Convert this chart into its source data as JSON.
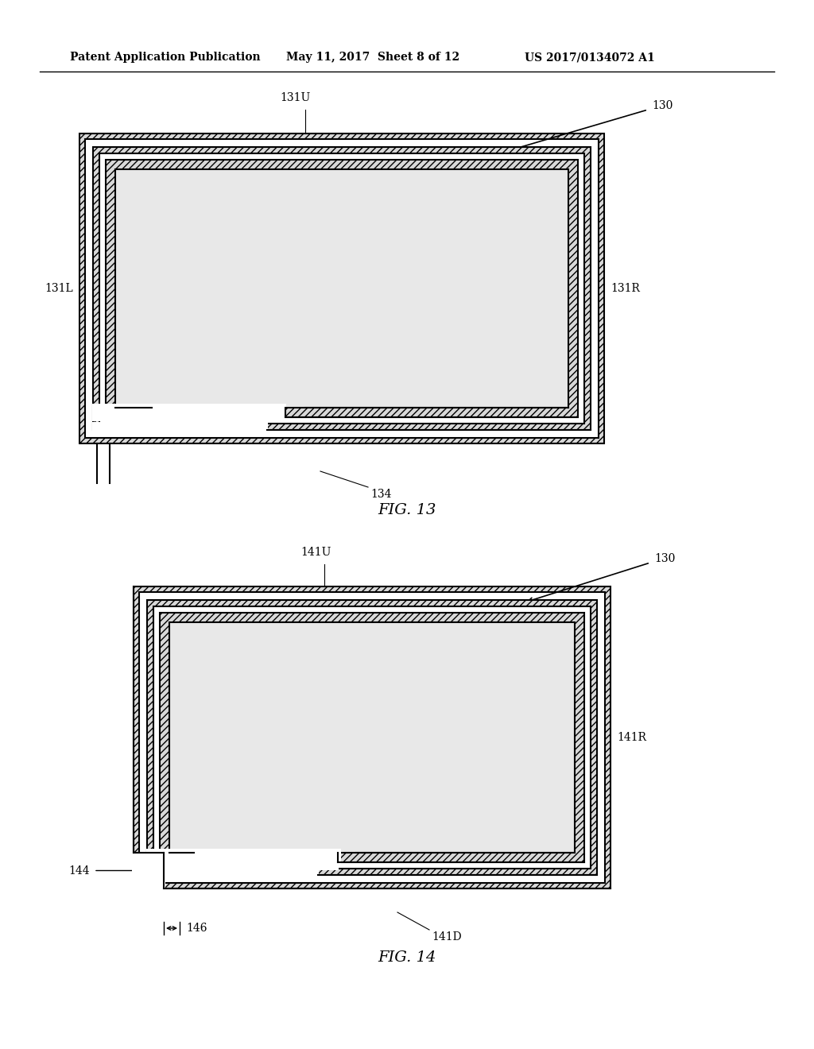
{
  "header_left": "Patent Application Publication",
  "header_mid": "May 11, 2017  Sheet 8 of 12",
  "header_right": "US 2017/0134072 A1",
  "fig13_caption": "FIG. 13",
  "fig14_caption": "FIG. 14",
  "bg_color": "#ffffff",
  "label_fontsize": 10,
  "caption_fontsize": 14,
  "header_fontsize": 10
}
